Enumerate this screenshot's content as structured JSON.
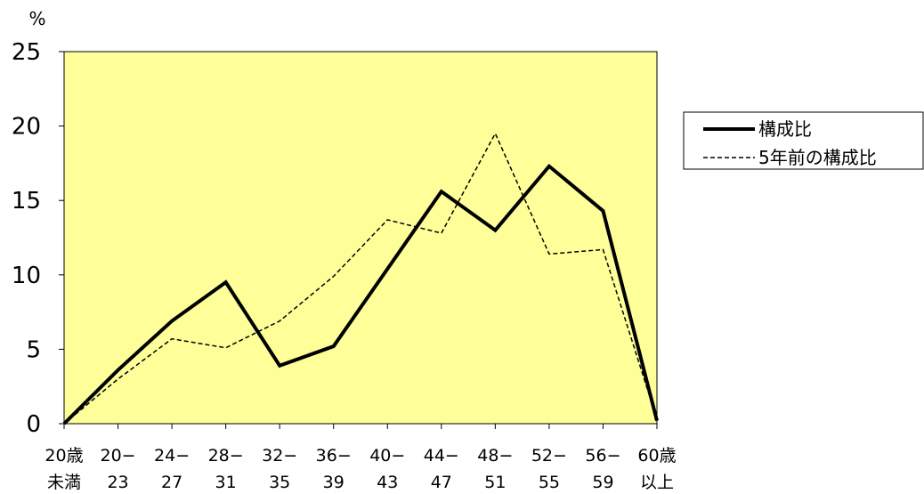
{
  "chart_data": {
    "type": "line",
    "ylabel": "%",
    "ylim": [
      0,
      25
    ],
    "yticks": [
      "0",
      "5",
      "10",
      "15",
      "20",
      "25"
    ],
    "categories": [
      [
        "20歳",
        "未満"
      ],
      [
        "20−",
        "23"
      ],
      [
        "24−",
        "27"
      ],
      [
        "28−",
        "31"
      ],
      [
        "32−",
        "35"
      ],
      [
        "36−",
        "39"
      ],
      [
        "40−",
        "43"
      ],
      [
        "44−",
        "47"
      ],
      [
        "48−",
        "51"
      ],
      [
        "52−",
        "55"
      ],
      [
        "56−",
        "59"
      ],
      [
        "60歳",
        "以上"
      ]
    ],
    "series": [
      {
        "name": "構成比",
        "style": "solid",
        "color": "#000000",
        "values": [
          0,
          3.6,
          6.9,
          9.5,
          3.9,
          5.2,
          10.4,
          15.6,
          13.0,
          17.3,
          14.3,
          0.2
        ]
      },
      {
        "name": "5年前の構成比",
        "style": "dashed",
        "color": "#000000",
        "values": [
          0,
          3.0,
          5.7,
          5.1,
          6.9,
          9.9,
          13.7,
          12.8,
          19.5,
          11.4,
          11.7,
          0.3
        ]
      }
    ],
    "plot_background": "#ffff99",
    "legend_position": "right",
    "grid": false
  }
}
